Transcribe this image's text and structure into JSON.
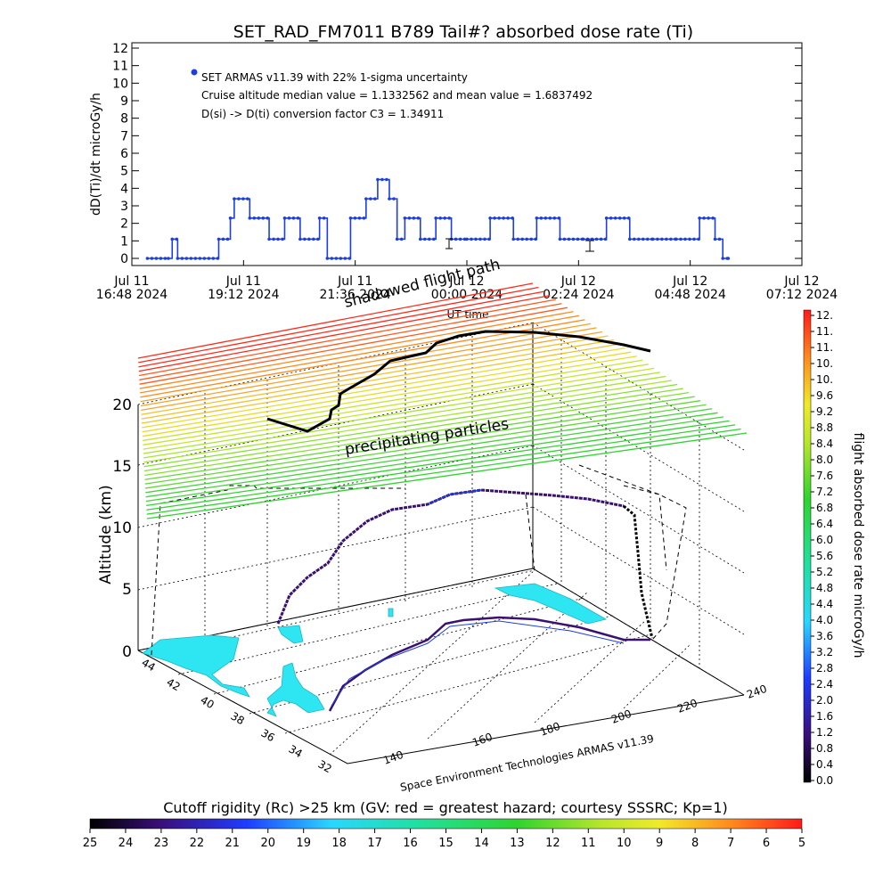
{
  "title": "SET_RAD_FM7011  B789 Tail#? absorbed dose rate (Ti)",
  "top_plot": {
    "ylabel": "dD(Ti)/dt microGy/h",
    "yticks": [
      "0",
      "1",
      "2",
      "3",
      "4",
      "5",
      "6",
      "7",
      "8",
      "9",
      "10",
      "11",
      "12"
    ],
    "xticks": [
      {
        "line1": "Jul 11",
        "line2": "16:48 2024"
      },
      {
        "line1": "Jul 11",
        "line2": "19:12 2024"
      },
      {
        "line1": "Jul 11",
        "line2": "21:36 2024"
      },
      {
        "line1": "Jul 12",
        "line2": "00:00 2024"
      },
      {
        "line1": "Jul 12",
        "line2": "02:24 2024"
      },
      {
        "line1": "Jul 12",
        "line2": "04:48 2024"
      },
      {
        "line1": "Jul 12",
        "line2": "07:12 2024"
      }
    ],
    "legend_entry": "SET ARMAS v11.39 with 22% 1-sigma uncertainty",
    "stat_line": "Cruise altitude median value = 1.1332562 and mean value = 1.6837492",
    "conv_line": "D(si) -> D(ti) conversion factor C3 = 1.34911",
    "xlabel": "UT time"
  },
  "chart_data": [
    {
      "type": "line",
      "title": "SET_RAD_FM7011  B789 Tail#? absorbed dose rate (Ti)",
      "ylabel": "dD(Ti)/dt microGy/h",
      "xlabel": "UT time",
      "ylim": [
        0,
        12
      ],
      "xlim_hours_utc": [
        "2024-07-11 16:48",
        "2024-07-12 07:12"
      ],
      "series": [
        {
          "name": "SET ARMAS v11.39 with 22% 1-sigma uncertainty",
          "x": [
            "2024-07-11 17:08",
            "2024-07-11 17:35",
            "2024-07-11 17:40",
            "2024-07-11 17:47",
            "2024-07-11 18:40",
            "2024-07-11 18:55",
            "2024-07-11 19:00",
            "2024-07-11 19:20",
            "2024-07-11 19:45",
            "2024-07-11 20:05",
            "2024-07-11 20:25",
            "2024-07-11 20:50",
            "2024-07-11 21:00",
            "2024-07-11 21:30",
            "2024-07-11 21:50",
            "2024-07-11 22:05",
            "2024-07-11 22:20",
            "2024-07-11 22:30",
            "2024-07-11 22:40",
            "2024-07-11 23:00",
            "2024-07-11 23:20",
            "2024-07-11 23:40",
            "2024-07-12 00:00",
            "2024-07-12 00:30",
            "2024-07-12 01:00",
            "2024-07-12 01:30",
            "2024-07-12 02:00",
            "2024-07-12 02:30",
            "2024-07-12 03:00",
            "2024-07-12 03:30",
            "2024-07-12 04:00",
            "2024-07-12 04:30",
            "2024-07-12 05:00",
            "2024-07-12 05:20",
            "2024-07-12 05:30",
            "2024-07-12 05:37"
          ],
          "y": [
            0.0,
            0.0,
            1.1,
            0.0,
            1.1,
            2.3,
            3.4,
            2.3,
            1.1,
            2.3,
            1.1,
            2.3,
            0.0,
            2.3,
            3.4,
            4.5,
            3.4,
            1.1,
            2.3,
            1.1,
            2.3,
            1.1,
            1.1,
            2.3,
            1.1,
            2.3,
            1.1,
            1.1,
            2.3,
            1.1,
            1.1,
            1.1,
            2.3,
            1.1,
            0.0,
            0.0
          ]
        }
      ],
      "legend": "top-left",
      "grid": false
    },
    {
      "type": "scatter",
      "title": "",
      "zlabel": "Altitude (km)",
      "zlim": [
        0,
        20
      ],
      "zticks": [
        "0",
        "5",
        "10",
        "15",
        "20"
      ],
      "lon_ticks": [
        "140",
        "160",
        "180",
        "200",
        "220",
        "240"
      ],
      "lat_ticks": [
        "32",
        "34",
        "36",
        "38",
        "40",
        "42",
        "44"
      ],
      "legend": "none",
      "grid": true,
      "annotations": [
        "shadowed flight path",
        "precipitating particles"
      ]
    }
  ],
  "dose_colorbar": {
    "label": "flight absorbed dose rate microGy/h",
    "ticks": [
      "0.0",
      "0.4",
      "0.8",
      "1.2",
      "1.6",
      "2.0",
      "2.4",
      "2.8",
      "3.2",
      "3.6",
      "4.0",
      "4.4",
      "4.8",
      "5.2",
      "5.6",
      "6.0",
      "6.4",
      "6.8",
      "7.2",
      "7.6",
      "8.0",
      "8.4",
      "8.8",
      "9.2",
      "9.6",
      "10.",
      "10.",
      "11.",
      "11.",
      "12."
    ]
  },
  "cutoff_colorbar": {
    "title": "Cutoff rigidity (Rc) >25 km (GV: red = greatest hazard; courtesy SSSRC; Kp=1)",
    "ticks": [
      "25",
      "24",
      "23",
      "22",
      "21",
      "20",
      "19",
      "18",
      "17",
      "16",
      "15",
      "14",
      "13",
      "12",
      "11",
      "10",
      "9",
      "8",
      "7",
      "6",
      "5"
    ]
  },
  "credit": "Space Environment Technologies ARMAS v11.39",
  "colors": {
    "series": "#1d3fe0",
    "map_fill": "#2ee6f2",
    "track_dark": "#3a1070",
    "axis": "#000000"
  }
}
